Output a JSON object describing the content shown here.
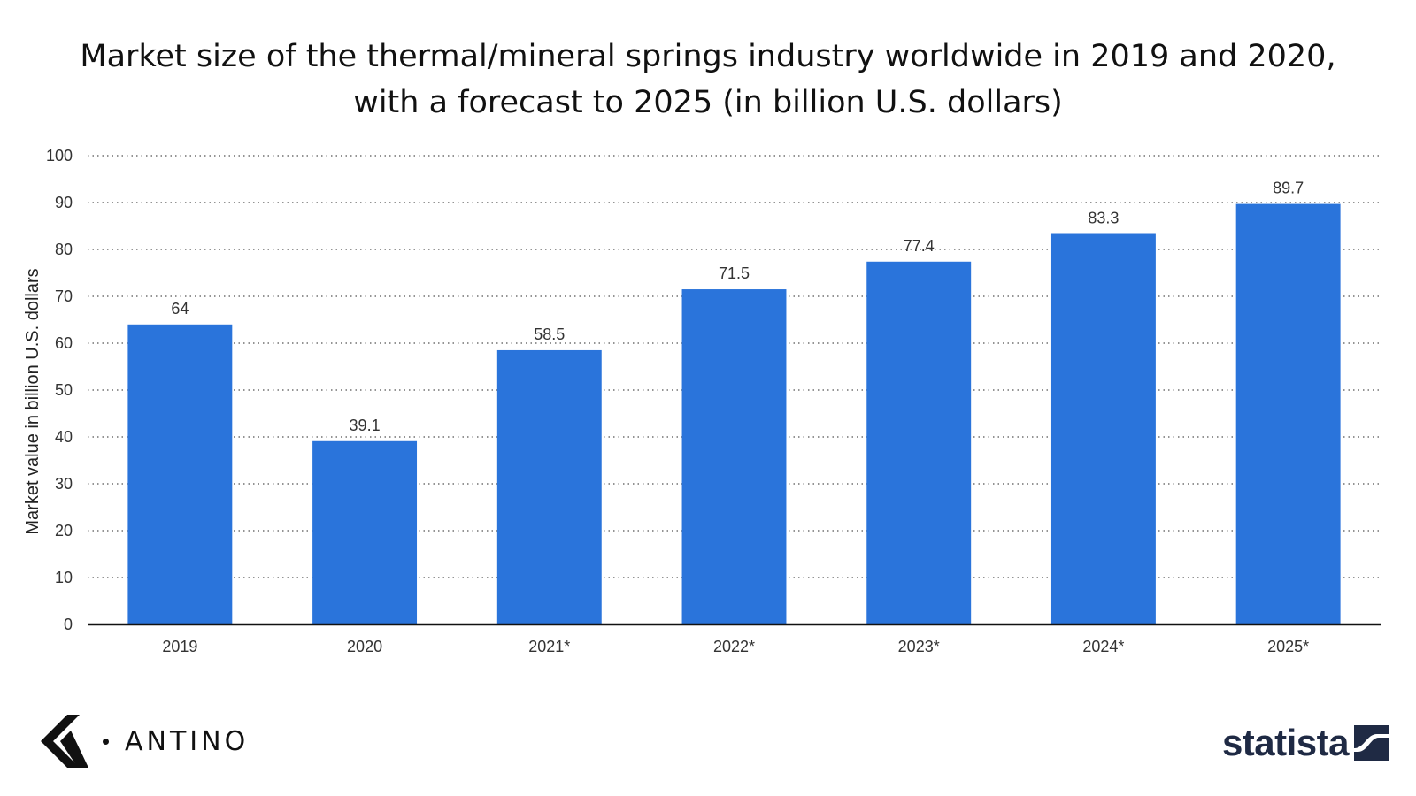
{
  "title_line1": "Market size of the thermal/mineral springs industry worldwide in 2019 and 2020,",
  "title_line2": "with a forecast to 2025 (in billion U.S. dollars)",
  "chart_data": {
    "type": "bar",
    "title": "Market size of the thermal/mineral springs industry worldwide in 2019 and 2020, with a forecast to 2025 (in billion U.S. dollars)",
    "categories": [
      "2019",
      "2020",
      "2021*",
      "2022*",
      "2023*",
      "2024*",
      "2025*"
    ],
    "values": [
      64,
      39.1,
      58.5,
      71.5,
      77.4,
      83.3,
      89.7
    ],
    "value_labels": [
      "64",
      "39.1",
      "58.5",
      "71.5",
      "77.4",
      "83.3",
      "89.7"
    ],
    "xlabel": "",
    "ylabel": "Market value in billion U.S. dollars",
    "ylim": [
      0,
      100
    ],
    "yticks": [
      0,
      10,
      20,
      30,
      40,
      50,
      60,
      70,
      80,
      90,
      100
    ],
    "grid": "horizontal dotted",
    "bar_color": "#2a74db"
  },
  "brand_left": {
    "name": "ANTINO",
    "icon": "antino-logo-icon"
  },
  "brand_right": {
    "name": "statista",
    "icon": "statista-logo-icon"
  }
}
